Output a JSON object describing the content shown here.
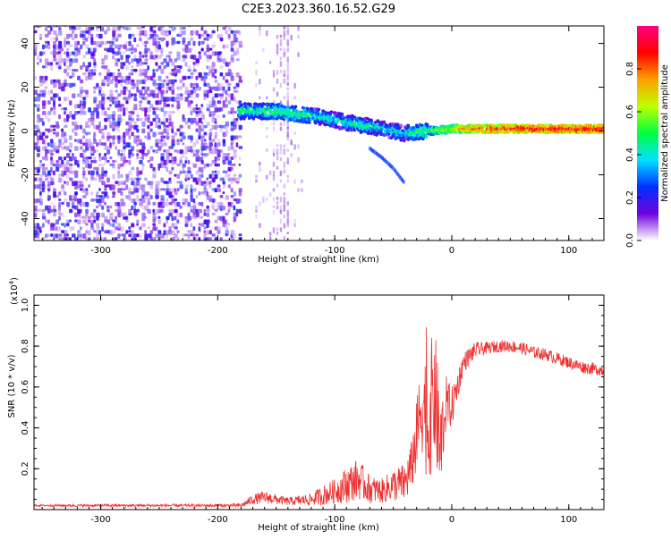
{
  "chart_data": [
    {
      "type": "heatmap",
      "title": "C2E3.2023.360.16.52.G29",
      "xlabel": "Height of straight line (km)",
      "ylabel": "Frequency (Hz)",
      "xlim": [
        -357,
        130
      ],
      "ylim": [
        -50,
        48
      ],
      "x_ticks": [
        -300,
        -200,
        -100,
        0,
        100
      ],
      "x_tick_labels": [
        "-300",
        "-200",
        "-100",
        "0",
        "100"
      ],
      "y_ticks": [
        -40,
        -20,
        0,
        20,
        40
      ],
      "y_tick_labels": [
        "-40",
        "-20",
        "0",
        "20",
        "40"
      ],
      "colorbar": {
        "label": "Normalized spectral amplitude",
        "range": [
          0,
          1
        ],
        "ticks": [
          0.0,
          0.2,
          0.4,
          0.6,
          0.8
        ],
        "tick_labels": [
          "0.0",
          "0.2",
          "0.4",
          "0.6",
          "0.8"
        ],
        "colors": [
          "#ffffff",
          "#7000e0",
          "#0030ff",
          "#00e0ff",
          "#00ff40",
          "#c0ff00",
          "#ffa000",
          "#ff0000",
          "#ff0080"
        ]
      },
      "features": [
        {
          "name": "noise",
          "x_range": [
            -357,
            -182
          ],
          "freq_range": [
            -50,
            48
          ],
          "amplitude": 0.15
        },
        {
          "name": "faint-column",
          "x_range": [
            -168,
            -128
          ],
          "freq_range": [
            -50,
            48
          ],
          "amplitude": 0.05
        },
        {
          "name": "signal-band",
          "x": [
            -182,
            -150,
            -120,
            -100,
            -80,
            -60,
            -40,
            -20,
            0,
            20,
            60,
            100,
            130
          ],
          "freq": [
            9,
            9,
            7,
            5,
            3,
            1,
            -1,
            0,
            1,
            1,
            1,
            1,
            1
          ],
          "amplitude": [
            0.45,
            0.5,
            0.45,
            0.4,
            0.45,
            0.4,
            0.4,
            0.55,
            0.7,
            0.85,
            0.9,
            0.9,
            0.9
          ]
        },
        {
          "name": "tail",
          "x": [
            -70,
            -60,
            -50,
            -40
          ],
          "freq": [
            -8,
            -12,
            -17,
            -24
          ],
          "amplitude": 0.2
        }
      ]
    },
    {
      "type": "line",
      "xlabel": "Height of straight line (km)",
      "ylabel": "SNR (10 * v/v)",
      "multiplier": "(x10",
      "multiplier_exp": "4",
      "multiplier_close": ")",
      "xlim": [
        -357,
        130
      ],
      "ylim": [
        0,
        1.05
      ],
      "x_ticks": [
        -300,
        -200,
        -100,
        0,
        100
      ],
      "x_tick_labels": [
        "-300",
        "-200",
        "-100",
        "0",
        "100"
      ],
      "y_ticks": [
        0.2,
        0.4,
        0.6,
        0.8,
        1.0
      ],
      "y_tick_labels": [
        "0.2",
        "0.4",
        "0.6",
        "0.8",
        "1.0"
      ],
      "color": "#ee3030",
      "series": [
        {
          "x": [
            -357,
            -300,
            -250,
            -200,
            -180,
            -170,
            -160,
            -140,
            -120,
            -110,
            -100,
            -90,
            -80,
            -70,
            -60,
            -50,
            -40,
            -35,
            -30,
            -25,
            -20,
            -15,
            -10,
            -5,
            0,
            10,
            20,
            30,
            40,
            50,
            60,
            70,
            80,
            90,
            100,
            110,
            120,
            130
          ],
          "y": [
            0.02,
            0.02,
            0.02,
            0.02,
            0.02,
            0.05,
            0.06,
            0.04,
            0.05,
            0.07,
            0.09,
            0.12,
            0.15,
            0.1,
            0.09,
            0.12,
            0.13,
            0.2,
            0.35,
            0.55,
            0.4,
            0.6,
            0.3,
            0.52,
            0.5,
            0.72,
            0.78,
            0.79,
            0.8,
            0.8,
            0.79,
            0.77,
            0.76,
            0.74,
            0.72,
            0.7,
            0.69,
            0.68
          ],
          "noise": [
            0.005,
            0.007,
            0.007,
            0.008,
            0.01,
            0.025,
            0.03,
            0.02,
            0.03,
            0.05,
            0.06,
            0.09,
            0.1,
            0.07,
            0.06,
            0.08,
            0.1,
            0.12,
            0.18,
            0.28,
            0.3,
            0.35,
            0.25,
            0.14,
            0.1,
            0.05,
            0.04,
            0.03,
            0.03,
            0.03,
            0.03,
            0.03,
            0.03,
            0.03,
            0.03,
            0.03,
            0.03,
            0.03
          ]
        }
      ]
    }
  ]
}
